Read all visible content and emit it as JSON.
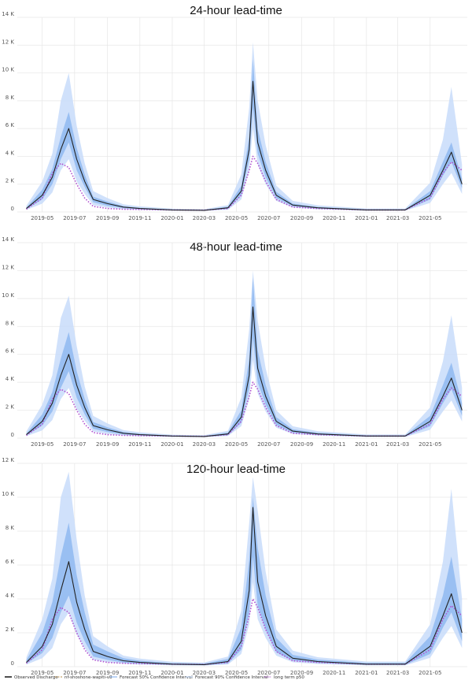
{
  "colors": {
    "observed": "#222222",
    "model": "#c8a36a",
    "ci50": "#8fb8f0",
    "ci90": "#c8dcfa",
    "p50": "#b04fcf",
    "grid": "#e6e6e6"
  },
  "legend": [
    {
      "label": "Observed Discharge",
      "color": "#222222",
      "style": "solid"
    },
    {
      "label": "nf-shoshone-wapiti-v8",
      "color": "#c8a36a",
      "style": "dashed"
    },
    {
      "label": "Forecast 50% Confidence Interval",
      "color": "#8fb8f0",
      "style": "thin"
    },
    {
      "label": "Forecast 90% Confidence Interval",
      "color": "#c8dcfa",
      "style": "thin"
    },
    {
      "label": "long term p50",
      "color": "#b04fcf",
      "style": "dotted"
    }
  ],
  "chart_data": [
    {
      "type": "line",
      "title": "24-hour lead-time",
      "xlabel": "",
      "ylabel": "",
      "ylim": [
        0,
        14000
      ],
      "yticks": [
        0,
        2000,
        4000,
        6000,
        8000,
        10000,
        12000,
        14000
      ],
      "ytick_labels": [
        "0",
        "2 K",
        "4 K",
        "6 K",
        "8 K",
        "10 K",
        "12 K",
        "14 K"
      ],
      "xtick_labels": [
        "2019-05",
        "2019-07",
        "2019-09",
        "2019-11",
        "2020-01",
        "2020-03",
        "2020-05",
        "2020-07",
        "2020-09",
        "2020-11",
        "2021-01",
        "2021-03",
        "2021-05"
      ],
      "x": [
        "2019-04-01",
        "2019-05-01",
        "2019-05-20",
        "2019-06-05",
        "2019-06-20",
        "2019-07-05",
        "2019-07-20",
        "2019-08-05",
        "2019-09-01",
        "2019-10-01",
        "2019-11-01",
        "2020-01-01",
        "2020-03-01",
        "2020-04-15",
        "2020-05-10",
        "2020-05-25",
        "2020-06-01",
        "2020-06-10",
        "2020-06-25",
        "2020-07-15",
        "2020-08-15",
        "2020-10-01",
        "2021-01-01",
        "2021-03-15",
        "2021-05-01",
        "2021-05-25",
        "2021-06-10",
        "2021-06-30"
      ],
      "series": [
        {
          "name": "Observed Discharge",
          "values": [
            250,
            1200,
            2500,
            4500,
            6000,
            3800,
            2200,
            900,
            600,
            350,
            250,
            150,
            120,
            300,
            1500,
            4500,
            9400,
            5000,
            3000,
            1200,
            500,
            300,
            150,
            150,
            1200,
            3000,
            4300,
            2000
          ]
        },
        {
          "name": "long term p50",
          "values": [
            200,
            1000,
            2800,
            3500,
            3200,
            2000,
            1000,
            400,
            250,
            200,
            180,
            150,
            130,
            250,
            1200,
            3000,
            4000,
            3500,
            2200,
            900,
            350,
            250,
            150,
            150,
            1000,
            2800,
            3600,
            3000
          ]
        },
        {
          "name": "Forecast 50% Confidence Interval (lower)",
          "values": [
            200,
            900,
            2000,
            3800,
            5000,
            3000,
            1800,
            700,
            450,
            280,
            200,
            120,
            100,
            220,
            1200,
            3800,
            7500,
            4200,
            2500,
            1000,
            420,
            250,
            120,
            120,
            900,
            2600,
            3600,
            1700
          ]
        },
        {
          "name": "Forecast 50% Confidence Interval (upper)",
          "values": [
            320,
            1600,
            3100,
            5400,
            7200,
            4600,
            2700,
            1100,
            750,
            420,
            300,
            180,
            150,
            380,
            1900,
            5400,
            11000,
            6000,
            3600,
            1450,
            600,
            360,
            190,
            190,
            1500,
            3600,
            5000,
            2400
          ]
        },
        {
          "name": "Forecast 90% Confidence Interval (lower)",
          "values": [
            150,
            600,
            1400,
            3000,
            3800,
            2200,
            1300,
            500,
            320,
            200,
            150,
            90,
            80,
            160,
            900,
            3000,
            6000,
            3400,
            2000,
            800,
            320,
            190,
            90,
            90,
            650,
            2000,
            2800,
            1300
          ]
        },
        {
          "name": "Forecast 90% Confidence Interval (upper)",
          "values": [
            450,
            2200,
            4200,
            8000,
            10000,
            6200,
            3500,
            1500,
            1000,
            550,
            400,
            240,
            200,
            500,
            2700,
            7500,
            12200,
            8000,
            4800,
            1900,
            800,
            480,
            250,
            250,
            2100,
            5200,
            9000,
            3400
          ]
        }
      ]
    },
    {
      "type": "line",
      "title": "48-hour lead-time",
      "xlabel": "",
      "ylabel": "",
      "ylim": [
        0,
        14000
      ],
      "yticks": [
        0,
        2000,
        4000,
        6000,
        8000,
        10000,
        12000,
        14000
      ],
      "ytick_labels": [
        "0",
        "2 K",
        "4 K",
        "6 K",
        "8 K",
        "10 K",
        "12 K",
        "14 K"
      ],
      "xtick_labels": [
        "2019-05",
        "2019-07",
        "2019-09",
        "2019-11",
        "2020-01",
        "2020-03",
        "2020-05",
        "2020-07",
        "2020-09",
        "2020-11",
        "2021-01",
        "2021-03",
        "2021-05"
      ],
      "x": [
        "2019-04-01",
        "2019-05-01",
        "2019-05-20",
        "2019-06-05",
        "2019-06-20",
        "2019-07-05",
        "2019-07-20",
        "2019-08-05",
        "2019-09-01",
        "2019-10-01",
        "2019-11-01",
        "2020-01-01",
        "2020-03-01",
        "2020-04-15",
        "2020-05-10",
        "2020-05-25",
        "2020-06-01",
        "2020-06-10",
        "2020-06-25",
        "2020-07-15",
        "2020-08-15",
        "2020-10-01",
        "2021-01-01",
        "2021-03-15",
        "2021-05-01",
        "2021-05-25",
        "2021-06-10",
        "2021-06-30"
      ],
      "series": [
        {
          "name": "Observed Discharge",
          "values": [
            250,
            1200,
            2500,
            4500,
            6000,
            3800,
            2200,
            900,
            600,
            350,
            250,
            150,
            120,
            300,
            1500,
            4500,
            9400,
            5000,
            3000,
            1200,
            500,
            300,
            150,
            150,
            1200,
            3000,
            4300,
            2000
          ]
        },
        {
          "name": "long term p50",
          "values": [
            200,
            1000,
            2800,
            3500,
            3200,
            2000,
            1000,
            400,
            250,
            200,
            180,
            150,
            130,
            250,
            1200,
            3000,
            4000,
            3500,
            2200,
            900,
            350,
            250,
            150,
            150,
            1000,
            2800,
            3600,
            3000
          ]
        },
        {
          "name": "Forecast 50% Confidence Interval (lower)",
          "values": [
            200,
            900,
            1900,
            3600,
            4800,
            2900,
            1700,
            680,
            440,
            270,
            200,
            120,
            100,
            210,
            1100,
            3600,
            7200,
            4000,
            2400,
            950,
            400,
            240,
            120,
            120,
            850,
            2500,
            3500,
            1600
          ]
        },
        {
          "name": "Forecast 50% Confidence Interval (upper)",
          "values": [
            330,
            1700,
            3300,
            5700,
            7600,
            4800,
            2800,
            1150,
            780,
            440,
            310,
            190,
            160,
            400,
            2000,
            5700,
            11500,
            6300,
            3800,
            1500,
            630,
            380,
            200,
            200,
            1600,
            3800,
            5400,
            2500
          ]
        },
        {
          "name": "Forecast 90% Confidence Interval (lower)",
          "values": [
            140,
            560,
            1300,
            2800,
            3600,
            2100,
            1250,
            480,
            300,
            190,
            140,
            85,
            75,
            150,
            850,
            2800,
            5600,
            3200,
            1900,
            750,
            300,
            180,
            85,
            85,
            600,
            1900,
            2700,
            1200
          ]
        },
        {
          "name": "Forecast 90% Confidence Interval (upper)",
          "values": [
            480,
            2400,
            4500,
            8600,
            10200,
            6600,
            3700,
            1600,
            1050,
            580,
            420,
            250,
            210,
            530,
            2900,
            7800,
            12000,
            8400,
            5000,
            2000,
            850,
            500,
            260,
            260,
            2200,
            5500,
            8800,
            3600
          ]
        }
      ]
    },
    {
      "type": "line",
      "title": "120-hour lead-time",
      "xlabel": "",
      "ylabel": "",
      "ylim": [
        0,
        12000
      ],
      "yticks": [
        0,
        2000,
        4000,
        6000,
        8000,
        10000,
        12000
      ],
      "ytick_labels": [
        "0",
        "2 K",
        "4 K",
        "6 K",
        "8 K",
        "10 K",
        "12 K"
      ],
      "xtick_labels": [
        "2019-05",
        "2019-07",
        "2019-09",
        "2019-11",
        "2020-01",
        "2020-03",
        "2020-05",
        "2020-07",
        "2020-09",
        "2020-11",
        "2021-01",
        "2021-03",
        "2021-05"
      ],
      "x": [
        "2019-04-01",
        "2019-05-01",
        "2019-05-20",
        "2019-06-05",
        "2019-06-20",
        "2019-07-05",
        "2019-07-20",
        "2019-08-05",
        "2019-09-01",
        "2019-10-01",
        "2019-11-01",
        "2020-01-01",
        "2020-03-01",
        "2020-04-15",
        "2020-05-10",
        "2020-05-25",
        "2020-06-01",
        "2020-06-10",
        "2020-06-25",
        "2020-07-15",
        "2020-08-15",
        "2020-10-01",
        "2021-01-01",
        "2021-03-15",
        "2021-05-01",
        "2021-05-25",
        "2021-06-10",
        "2021-06-30"
      ],
      "series": [
        {
          "name": "Observed Discharge",
          "values": [
            250,
            1200,
            2500,
            4500,
            6200,
            3800,
            2200,
            900,
            600,
            350,
            250,
            150,
            120,
            300,
            1500,
            4500,
            9400,
            5000,
            3000,
            1200,
            500,
            300,
            150,
            150,
            1200,
            3000,
            4300,
            2000
          ]
        },
        {
          "name": "long term p50",
          "values": [
            200,
            1000,
            2800,
            3500,
            3200,
            2000,
            1000,
            400,
            250,
            200,
            180,
            150,
            130,
            250,
            1200,
            3000,
            4000,
            3500,
            2200,
            900,
            350,
            250,
            150,
            150,
            1000,
            2800,
            3600,
            3000
          ]
        },
        {
          "name": "Forecast 50% Confidence Interval (lower)",
          "values": [
            180,
            800,
            1700,
            3200,
            4200,
            2600,
            1500,
            600,
            400,
            240,
            180,
            110,
            90,
            190,
            1000,
            3200,
            6500,
            3600,
            2200,
            850,
            360,
            220,
            110,
            110,
            750,
            2300,
            3200,
            1500
          ]
        },
        {
          "name": "Forecast 50% Confidence Interval (upper)",
          "values": [
            380,
            2000,
            3800,
            6500,
            8500,
            5400,
            3200,
            1300,
            900,
            500,
            350,
            210,
            180,
            450,
            2300,
            6300,
            10000,
            7000,
            4200,
            1700,
            700,
            420,
            220,
            220,
            1800,
            4200,
            6500,
            2800
          ]
        },
        {
          "name": "Forecast 90% Confidence Interval (lower)",
          "values": [
            120,
            500,
            1100,
            2500,
            3200,
            1900,
            1100,
            420,
            270,
            170,
            120,
            75,
            65,
            130,
            750,
            2500,
            5000,
            2800,
            1700,
            650,
            260,
            160,
            75,
            75,
            520,
            1700,
            2400,
            1100
          ]
        },
        {
          "name": "Forecast 90% Confidence Interval (upper)",
          "values": [
            550,
            2800,
            5200,
            10000,
            11500,
            7500,
            4200,
            1800,
            1200,
            650,
            480,
            290,
            240,
            600,
            3300,
            8500,
            11200,
            9200,
            5600,
            2200,
            950,
            560,
            300,
            300,
            2500,
            6200,
            10500,
            4000
          ]
        }
      ]
    }
  ]
}
